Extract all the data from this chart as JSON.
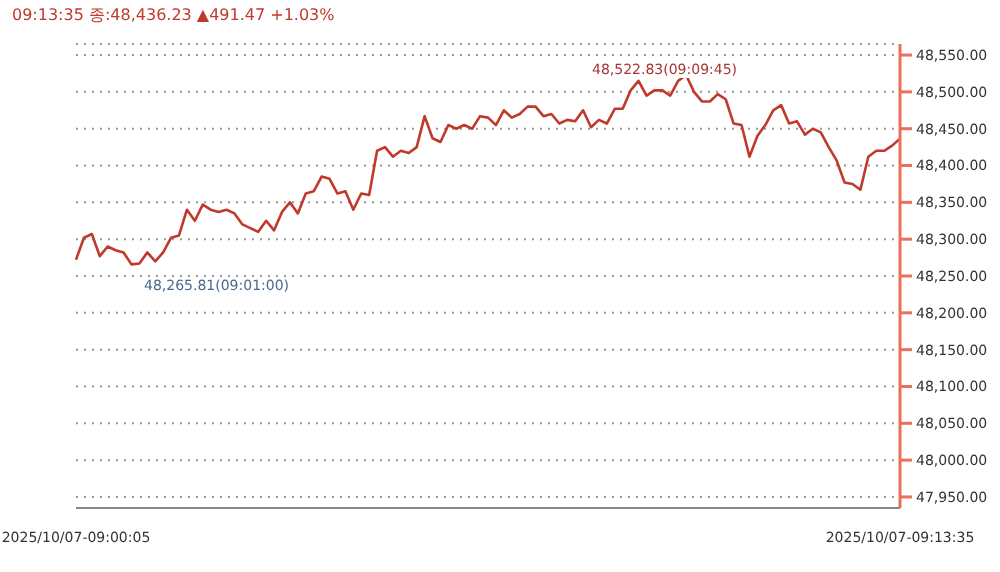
{
  "chart_data": {
    "type": "line",
    "subtitle": "09:13:35 종:48,436.23 ▲491.47 +1.03%",
    "categories": [
      "2025/10/07-09:00:05",
      null,
      null,
      null,
      null,
      null,
      null,
      null,
      null,
      null,
      null,
      null,
      null,
      null,
      null,
      null,
      null,
      null,
      null,
      null,
      null,
      null,
      null,
      null,
      null,
      null,
      null,
      null,
      null,
      null,
      null,
      null,
      null,
      null,
      null,
      null,
      null,
      null,
      null,
      null,
      null,
      null,
      null,
      null,
      null,
      null,
      null,
      null,
      null,
      null,
      null,
      null,
      null,
      null,
      null,
      null,
      null,
      null,
      null,
      null,
      null,
      null,
      null,
      null,
      null,
      null,
      null,
      null,
      null,
      null,
      null,
      null,
      null,
      null,
      null,
      null,
      null,
      null,
      null,
      null,
      null,
      null,
      null,
      null,
      null,
      null,
      null,
      null,
      null,
      null,
      null,
      null,
      null,
      null,
      null,
      null,
      null,
      null,
      null,
      null,
      null,
      null,
      null,
      null,
      "2025/10/07-09:13:35"
    ],
    "series": [
      {
        "color": "#c0392b",
        "values": [
          48272,
          48302,
          48307,
          48277,
          48290,
          48285,
          48282,
          48265.81,
          48267,
          48282,
          48270,
          48282,
          48302,
          48305,
          48340,
          48325,
          48347,
          48340,
          48337,
          48340,
          48335,
          48320,
          48315,
          48310,
          48325,
          48312,
          48337,
          48350,
          48335,
          48362,
          48365,
          48385,
          48382,
          48362,
          48365,
          48340,
          48362,
          48360,
          48420,
          48425,
          48412,
          48420,
          48417,
          48425,
          48467,
          48437,
          48432,
          48455,
          48450,
          48455,
          48450,
          48467,
          48465,
          48455,
          48475,
          48465,
          48470,
          48480,
          48480,
          48467,
          48470,
          48457,
          48462,
          48460,
          48475,
          48452,
          48462,
          48457,
          48477,
          48477,
          48502,
          48515,
          48495,
          48502,
          48502,
          48495,
          48515,
          48522.83,
          48500,
          48487,
          48487,
          48497,
          48490,
          48457,
          48455,
          48412,
          48440,
          48455,
          48475,
          48482,
          48457,
          48460,
          48442,
          48450,
          48445,
          48425,
          48407,
          48377,
          48375,
          48367,
          48412,
          48420,
          48420,
          48427,
          48436.23
        ]
      }
    ],
    "ylim": [
      47935,
      48565
    ],
    "yticks": [
      {
        "value": 47950,
        "label": "47,950.00"
      },
      {
        "value": 48000,
        "label": "48,000.00"
      },
      {
        "value": 48050,
        "label": "48,050.00"
      },
      {
        "value": 48100,
        "label": "48,100.00"
      },
      {
        "value": 48150,
        "label": "48,150.00"
      },
      {
        "value": 48200,
        "label": "48,200.00"
      },
      {
        "value": 48250,
        "label": "48,250.00"
      },
      {
        "value": 48300,
        "label": "48,300.00"
      },
      {
        "value": 48350,
        "label": "48,350.00"
      },
      {
        "value": 48400,
        "label": "48,400.00"
      },
      {
        "value": 48450,
        "label": "48,450.00"
      },
      {
        "value": 48500,
        "label": "48,500.00"
      },
      {
        "value": 48550,
        "label": "48,550.00"
      }
    ],
    "annotations": [
      "48,265.81(09:01:00)",
      "48,522.83(09:09:45)"
    ],
    "grid": "y",
    "marker": "none",
    "line_style": "solid"
  }
}
